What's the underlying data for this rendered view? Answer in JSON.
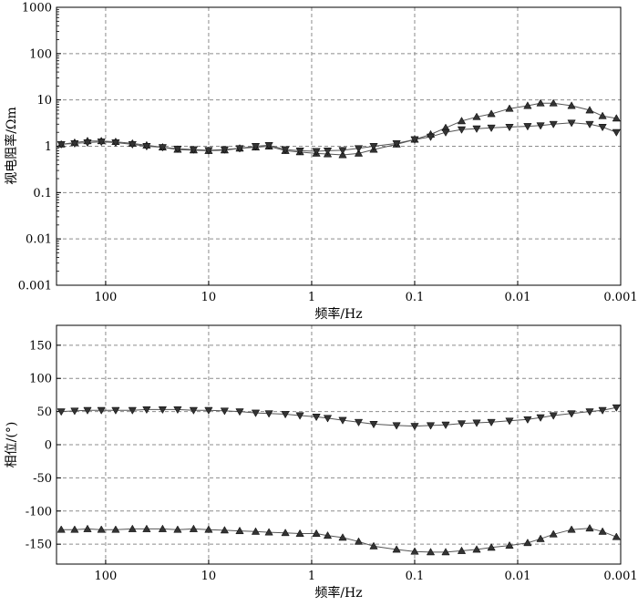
{
  "chart_data": [
    {
      "type": "line",
      "xlabel": "频率/Hz",
      "ylabel": "视电阻率/Ωm",
      "xscale": "log",
      "xaxis": "reversed",
      "yscale": "log",
      "xlim": [
        300,
        0.001
      ],
      "ylim": [
        0.001,
        1000
      ],
      "xticks": [
        100,
        10,
        1,
        0.1,
        0.01,
        0.001
      ],
      "xtick_labels": [
        "100",
        "10",
        "1",
        "0.1",
        "0.01",
        "0.001"
      ],
      "yticks": [
        0.001,
        0.01,
        0.1,
        1,
        10,
        100,
        1000
      ],
      "ytick_labels": [
        "0.001",
        "0.01",
        "0.1",
        "1",
        "10",
        "100",
        "1000"
      ],
      "grid": true,
      "series": [
        {
          "marker": "triangle-up",
          "color": "#333333",
          "x": [
            270,
            200,
            150,
            110,
            80,
            55,
            40,
            28,
            20,
            14,
            10,
            7,
            5,
            3.5,
            2.6,
            1.8,
            1.3,
            0.9,
            0.7,
            0.5,
            0.35,
            0.25,
            0.15,
            0.1,
            0.07,
            0.05,
            0.035,
            0.025,
            0.018,
            0.012,
            0.008,
            0.006,
            0.0045,
            0.003,
            0.002,
            0.0015,
            0.0011
          ],
          "y": [
            1.1,
            1.2,
            1.3,
            1.3,
            1.25,
            1.15,
            1.05,
            0.95,
            0.85,
            0.82,
            0.8,
            0.82,
            0.9,
            0.95,
            1.0,
            0.8,
            0.75,
            0.7,
            0.68,
            0.65,
            0.7,
            0.85,
            1.1,
            1.4,
            1.8,
            2.5,
            3.5,
            4.3,
            5.0,
            6.5,
            7.5,
            8.5,
            8.5,
            7.5,
            6.0,
            4.5,
            4.0
          ]
        },
        {
          "marker": "triangle-down",
          "color": "#333333",
          "x": [
            270,
            200,
            150,
            110,
            80,
            55,
            40,
            28,
            20,
            14,
            10,
            7,
            5,
            3.5,
            2.6,
            1.8,
            1.3,
            0.9,
            0.7,
            0.5,
            0.35,
            0.25,
            0.15,
            0.1,
            0.07,
            0.05,
            0.035,
            0.025,
            0.018,
            0.012,
            0.008,
            0.006,
            0.0045,
            0.003,
            0.002,
            0.0015,
            0.0011
          ],
          "y": [
            1.1,
            1.15,
            1.2,
            1.25,
            1.2,
            1.1,
            1.0,
            0.95,
            0.88,
            0.85,
            0.82,
            0.85,
            0.9,
            1.0,
            1.05,
            0.85,
            0.8,
            0.78,
            0.8,
            0.82,
            0.9,
            1.0,
            1.15,
            1.4,
            1.6,
            2.0,
            2.3,
            2.4,
            2.5,
            2.6,
            2.7,
            2.8,
            3.0,
            3.2,
            3.0,
            2.6,
            2.0
          ]
        }
      ]
    },
    {
      "type": "line",
      "xlabel": "频率/Hz",
      "ylabel": "相位/(°)",
      "xscale": "log",
      "xaxis": "reversed",
      "xlim": [
        300,
        0.001
      ],
      "ylim": [
        -180,
        180
      ],
      "xticks": [
        100,
        10,
        1,
        0.1,
        0.01,
        0.001
      ],
      "xtick_labels": [
        "100",
        "10",
        "1",
        "0.1",
        "0.01",
        "0.001"
      ],
      "yticks": [
        150,
        100,
        50,
        0,
        -50,
        -100,
        -150
      ],
      "ytick_labels": [
        "150",
        "100",
        "50",
        "0",
        "-50",
        "-100",
        "-150"
      ],
      "grid": true,
      "series": [
        {
          "marker": "triangle-down",
          "color": "#333333",
          "x": [
            270,
            200,
            150,
            110,
            80,
            55,
            40,
            28,
            20,
            14,
            10,
            7,
            5,
            3.5,
            2.6,
            1.8,
            1.3,
            0.9,
            0.7,
            0.5,
            0.35,
            0.25,
            0.15,
            0.1,
            0.07,
            0.05,
            0.035,
            0.025,
            0.018,
            0.012,
            0.008,
            0.006,
            0.0045,
            0.003,
            0.002,
            0.0015,
            0.0011
          ],
          "y": [
            50,
            51,
            52,
            52,
            52,
            52,
            53,
            53,
            53,
            52,
            52,
            51,
            50,
            48,
            47,
            46,
            44,
            42,
            40,
            37,
            34,
            31,
            29,
            28,
            29,
            30,
            32,
            33,
            34,
            36,
            38,
            41,
            44,
            47,
            50,
            52,
            56
          ]
        },
        {
          "marker": "triangle-up",
          "color": "#333333",
          "x": [
            270,
            200,
            150,
            110,
            80,
            55,
            40,
            28,
            20,
            14,
            10,
            7,
            5,
            3.5,
            2.6,
            1.8,
            1.3,
            0.9,
            0.7,
            0.5,
            0.35,
            0.25,
            0.15,
            0.1,
            0.07,
            0.05,
            0.035,
            0.025,
            0.018,
            0.012,
            0.008,
            0.006,
            0.0045,
            0.003,
            0.002,
            0.0015,
            0.0011
          ],
          "y": [
            -128,
            -128,
            -127,
            -128,
            -128,
            -127,
            -127,
            -127,
            -128,
            -127,
            -128,
            -129,
            -130,
            -131,
            -132,
            -133,
            -134,
            -134,
            -137,
            -140,
            -146,
            -153,
            -158,
            -161,
            -162,
            -162,
            -160,
            -158,
            -155,
            -152,
            -148,
            -142,
            -135,
            -128,
            -126,
            -131,
            -139
          ]
        }
      ]
    }
  ]
}
